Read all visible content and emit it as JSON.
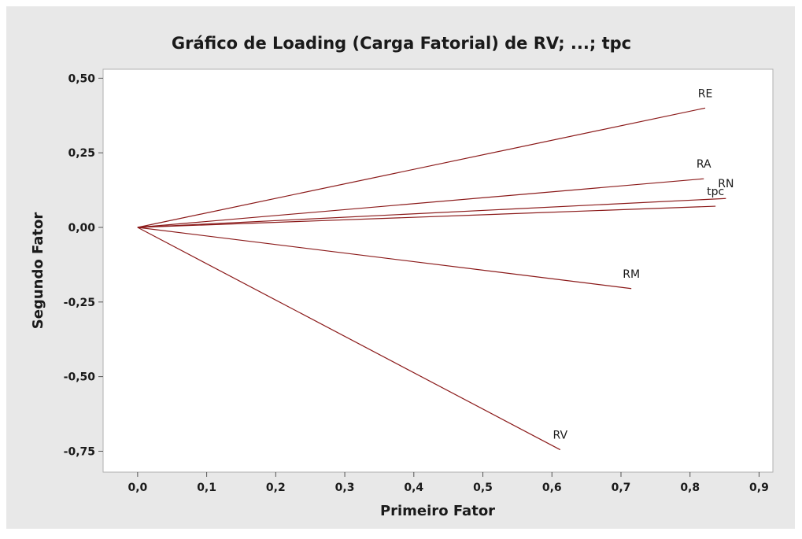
{
  "chart_data": {
    "type": "loading",
    "title": "Gráfico de Loading (Carga Fatorial) de RV; ...; tpc",
    "xlabel": "Primeiro Fator",
    "ylabel": "Segundo Fator",
    "color": "#8b1a1a",
    "labels": [
      "RE",
      "RA",
      "RN",
      "tpc",
      "RM",
      "RV"
    ],
    "x": [
      0.822,
      0.82,
      0.852,
      0.837,
      0.715,
      0.612
    ],
    "values": [
      0.4,
      0.163,
      0.097,
      0.071,
      -0.205,
      -0.745
    ],
    "xlim": [
      -0.05,
      0.92
    ],
    "ylim": [
      -0.82,
      0.53
    ],
    "xticks": [
      {
        "value": 0,
        "label": "0,0"
      },
      {
        "value": 0.1,
        "label": "0,1"
      },
      {
        "value": 0.2,
        "label": "0,2"
      },
      {
        "value": 0.3,
        "label": "0,3"
      },
      {
        "value": 0.4,
        "label": "0,4"
      },
      {
        "value": 0.5,
        "label": "0,5"
      },
      {
        "value": 0.6,
        "label": "0,6"
      },
      {
        "value": 0.7,
        "label": "0,7"
      },
      {
        "value": 0.8,
        "label": "0,8"
      },
      {
        "value": 0.9,
        "label": "0,9"
      }
    ],
    "yticks": [
      {
        "value": 0.5,
        "label": "0,50"
      },
      {
        "value": 0.25,
        "label": "0,25"
      },
      {
        "value": 0,
        "label": "0,00"
      },
      {
        "value": -0.25,
        "label": "-0,25"
      },
      {
        "value": -0.5,
        "label": "-0,50"
      },
      {
        "value": -0.75,
        "label": "-0,75"
      }
    ]
  }
}
